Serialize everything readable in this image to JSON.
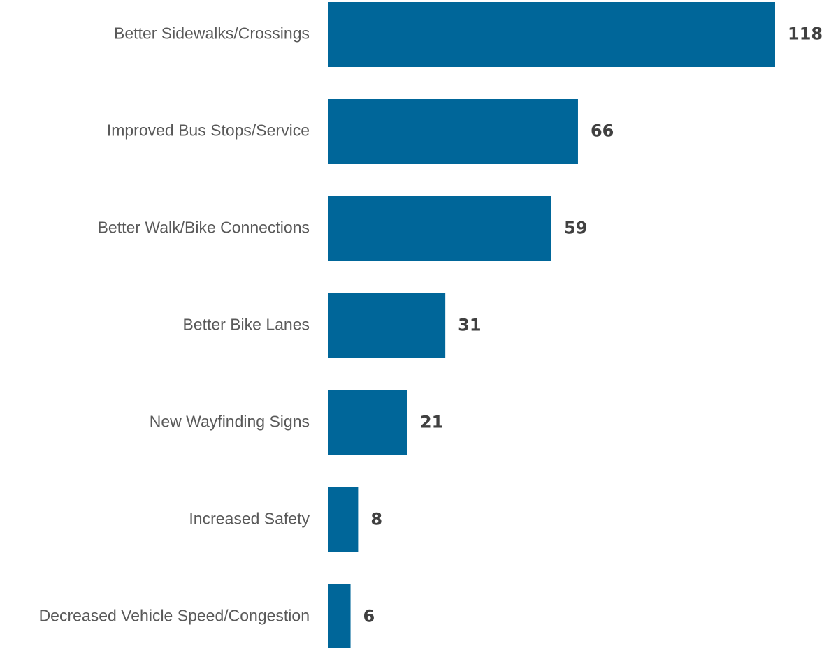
{
  "chart_data": {
    "type": "bar",
    "orientation": "horizontal",
    "categories": [
      "Better Sidewalks/Crossings",
      "Improved Bus Stops/Service",
      "Better Walk/Bike Connections",
      "Better Bike Lanes",
      "New Wayfinding Signs",
      "Increased Safety",
      "Decreased Vehicle Speed/Congestion"
    ],
    "values": [
      118,
      66,
      59,
      31,
      21,
      8,
      6
    ],
    "data_labels": [
      "118",
      "66",
      "59",
      "31",
      "21",
      "8",
      "6"
    ],
    "title": "",
    "xlabel": "",
    "ylabel": "",
    "xlim": [
      0,
      118
    ],
    "grid": false,
    "legend": "none",
    "colors": {
      "bar": "#006699",
      "category_text": "#595959",
      "value_text": "#404040"
    }
  }
}
